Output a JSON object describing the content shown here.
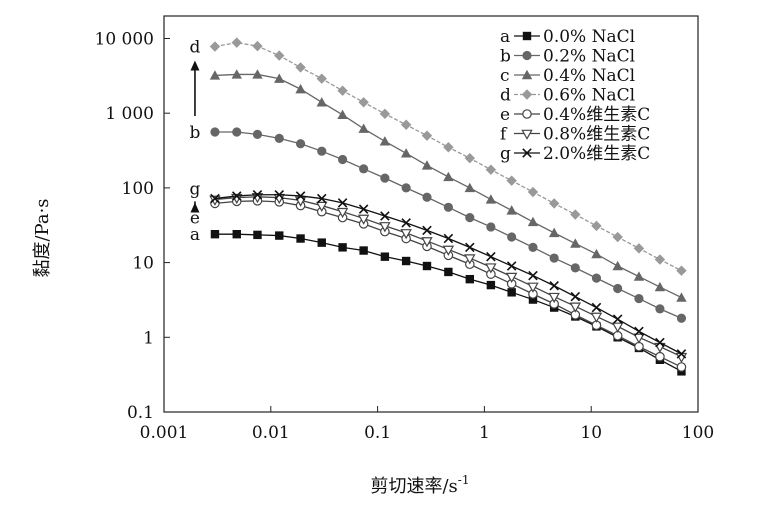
{
  "chart_data": {
    "type": "line",
    "xlabel": "剪切速率/s",
    "xlabel_sup": "-1",
    "ylabel": "黏度/Pa·s",
    "xscale": "log",
    "yscale": "log",
    "xlim": [
      0.001,
      100
    ],
    "ylim": [
      0.1,
      20000
    ],
    "x_ticks": [
      {
        "value": 0.001,
        "label": "0.001"
      },
      {
        "value": 0.01,
        "label": "0.01"
      },
      {
        "value": 0.1,
        "label": "0.1"
      },
      {
        "value": 1,
        "label": "1"
      },
      {
        "value": 10,
        "label": "10"
      },
      {
        "value": 100,
        "label": "100"
      }
    ],
    "y_ticks": [
      {
        "value": 0.1,
        "label": "0.1"
      },
      {
        "value": 1,
        "label": "1"
      },
      {
        "value": 10,
        "label": "10"
      },
      {
        "value": 100,
        "label": "100"
      },
      {
        "value": 1000,
        "label": "1 000"
      },
      {
        "value": 10000,
        "label": "10 000"
      }
    ],
    "grid": false,
    "legend": {
      "position": "top-right"
    },
    "x": [
      0.003,
      0.0048,
      0.0075,
      0.012,
      0.019,
      0.03,
      0.047,
      0.074,
      0.117,
      0.185,
      0.29,
      0.46,
      0.73,
      1.15,
      1.8,
      2.85,
      4.5,
      7.1,
      11.2,
      17.7,
      28,
      44,
      70
    ],
    "series": [
      {
        "key": "a",
        "name": "0.0% NaCl",
        "marker": "square",
        "color": "#111111",
        "line": "solid",
        "values": [
          24,
          24,
          23.5,
          23,
          21,
          18.5,
          16,
          14.5,
          12,
          10.5,
          9,
          7.5,
          6,
          5,
          4,
          3.2,
          2.5,
          1.9,
          1.4,
          1.0,
          0.72,
          0.5,
          0.35
        ]
      },
      {
        "key": "b",
        "name": "0.2% NaCl",
        "marker": "circle",
        "color": "#666666",
        "line": "solid",
        "values": [
          560,
          560,
          520,
          460,
          390,
          310,
          240,
          180,
          135,
          100,
          75,
          55,
          40,
          30,
          22,
          16,
          11.5,
          8.5,
          6.2,
          4.5,
          3.3,
          2.4,
          1.8
        ]
      },
      {
        "key": "c",
        "name": "0.4% NaCl",
        "marker": "triangle",
        "color": "#666666",
        "line": "solid",
        "values": [
          3200,
          3300,
          3300,
          2900,
          2100,
          1400,
          950,
          620,
          420,
          290,
          200,
          140,
          100,
          70,
          50,
          35,
          25,
          18,
          13,
          9,
          6.5,
          4.7,
          3.4
        ]
      },
      {
        "key": "d",
        "name": "0.6% NaCl",
        "marker": "diamond",
        "color": "#999999",
        "line": "dashed",
        "values": [
          7800,
          8800,
          7900,
          5900,
          4100,
          2900,
          2000,
          1400,
          980,
          700,
          500,
          350,
          250,
          175,
          125,
          88,
          62,
          44,
          31,
          22,
          15.5,
          11,
          7.8
        ]
      },
      {
        "key": "e",
        "name": "0.4%维生素C",
        "marker": "circle-open",
        "color": "#444444",
        "line": "solid",
        "values": [
          62,
          66,
          67,
          65,
          58,
          48,
          40,
          33,
          26,
          21,
          16.5,
          12.5,
          9.5,
          7,
          5.2,
          3.8,
          2.8,
          2.0,
          1.45,
          1.05,
          0.75,
          0.55,
          0.4
        ]
      },
      {
        "key": "f",
        "name": "0.8%维生素C",
        "marker": "triangle-down-open",
        "color": "#444444",
        "line": "solid",
        "values": [
          70,
          74,
          76,
          74,
          68,
          58,
          48,
          39,
          31,
          25,
          19.5,
          15,
          11.5,
          8.7,
          6.5,
          4.8,
          3.5,
          2.6,
          1.9,
          1.4,
          1.0,
          0.75,
          0.55
        ]
      },
      {
        "key": "g",
        "name": "2.0%维生素C",
        "marker": "x",
        "color": "#111111",
        "line": "solid",
        "values": [
          72,
          78,
          81,
          81,
          78,
          72,
          63,
          52,
          42,
          34,
          27,
          21,
          16,
          12,
          9,
          6.7,
          4.9,
          3.5,
          2.5,
          1.75,
          1.2,
          0.85,
          0.6
        ]
      }
    ],
    "curve_letters": [
      "d",
      "b",
      "g",
      "e",
      "a"
    ],
    "annotations": [
      {
        "type": "arrow",
        "from": "b",
        "to": "d"
      },
      {
        "type": "arrow",
        "from": "e",
        "to": "g"
      }
    ]
  }
}
